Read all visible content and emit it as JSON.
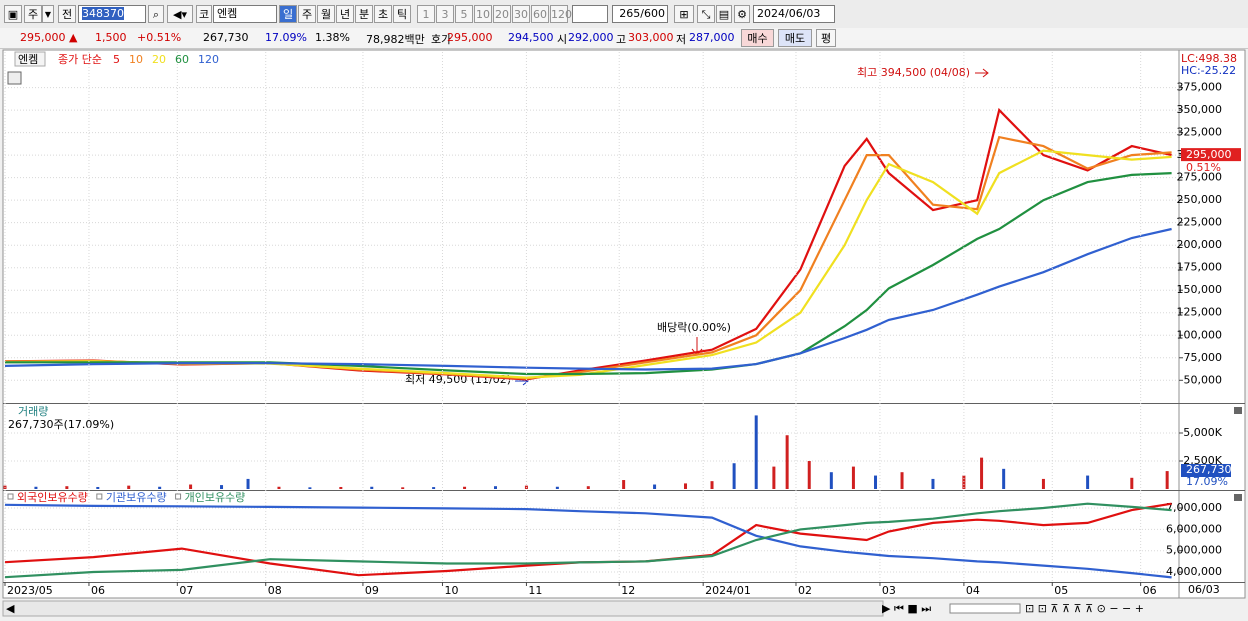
{
  "toolbar": {
    "market": "주",
    "prev": "전",
    "code": "348370",
    "exchange": "코",
    "name": "엔켐",
    "periods": [
      "일",
      "주",
      "월",
      "년",
      "분",
      "초",
      "틱"
    ],
    "intervals": [
      "1",
      "3",
      "5",
      "10",
      "20",
      "30",
      "60",
      "120"
    ],
    "count": "265/600",
    "date": "2024/06/03"
  },
  "quote": [
    {
      "text": "295,000 ▲",
      "color": "#d00000"
    },
    {
      "text": "1,500",
      "color": "#d00000"
    },
    {
      "text": "+0.51%",
      "color": "#d00000"
    },
    {
      "text": "267,730",
      "color": "#000000"
    },
    {
      "text": "17.09%",
      "color": "#0000c0"
    },
    {
      "text": "1.38%",
      "color": "#000000"
    },
    {
      "text": "78,982백만",
      "color": "#000000"
    },
    {
      "text": "호가",
      "color": "#000000"
    },
    {
      "text": "295,000",
      "color": "#d00000"
    },
    {
      "text": "294,500",
      "color": "#0000c0"
    },
    {
      "text": "시",
      "color": "#000000"
    },
    {
      "text": "292,000",
      "color": "#0000c0"
    },
    {
      "text": "고",
      "color": "#000000"
    },
    {
      "text": "303,000",
      "color": "#d00000"
    },
    {
      "text": "저",
      "color": "#000000"
    },
    {
      "text": "287,000",
      "color": "#0000c0"
    }
  ],
  "buttons": [
    "매수",
    "매도",
    "평"
  ],
  "chart_data": [
    {
      "type": "line",
      "title": "엔켐",
      "legend_title": "종가 단순",
      "x": [
        0,
        20,
        40,
        60,
        80,
        100,
        118,
        130,
        145,
        160,
        170,
        180,
        190,
        195,
        200,
        210,
        220,
        225,
        235,
        245,
        255,
        264
      ],
      "xlim": [
        0,
        265
      ],
      "ylim": [
        27000,
        414500
      ],
      "yticks": [
        {
          "value": 50000,
          "label": "50,000"
        },
        {
          "value": 75000,
          "label": "75,000"
        },
        {
          "value": 100000,
          "label": "100,000"
        },
        {
          "value": 125000,
          "label": "125,000"
        },
        {
          "value": 150000,
          "label": "150,000"
        },
        {
          "value": 175000,
          "label": "175,000"
        },
        {
          "value": 200000,
          "label": "200,000"
        },
        {
          "value": 225000,
          "label": "225,000"
        },
        {
          "value": 250000,
          "label": "250,000"
        },
        {
          "value": 275000,
          "label": "275,000"
        },
        {
          "value": 300000,
          "label": "300,000"
        },
        {
          "value": 325000,
          "label": "325,000"
        },
        {
          "value": 350000,
          "label": "350,000"
        },
        {
          "value": 375000,
          "label": "375,000"
        }
      ],
      "grid": true,
      "series": [
        {
          "name": "5",
          "color": "#e01010",
          "values": [
            71000,
            72000,
            67500,
            69000,
            61000,
            56500,
            51000,
            61000,
            72000,
            84000,
            107000,
            173000,
            288000,
            318000,
            280000,
            239000,
            250000,
            350000,
            300000,
            283000,
            310000,
            300000
          ]
        },
        {
          "name": "10",
          "color": "#f08020",
          "values": [
            71000,
            71500,
            68000,
            69000,
            62000,
            57000,
            52000,
            59000,
            70000,
            81000,
            100000,
            150000,
            250000,
            300000,
            300000,
            245000,
            240000,
            320000,
            310000,
            285000,
            300000,
            303000
          ]
        },
        {
          "name": "20",
          "color": "#f0e020",
          "values": [
            70000,
            71000,
            69000,
            68500,
            63000,
            58000,
            53000,
            56000,
            67000,
            78000,
            92000,
            125000,
            200000,
            250000,
            290000,
            270000,
            235000,
            280000,
            305000,
            300000,
            295000,
            298000
          ]
        },
        {
          "name": "60",
          "color": "#209040",
          "values": [
            70000,
            70000,
            70000,
            70000,
            66000,
            61000,
            57000,
            57000,
            58000,
            62000,
            68000,
            80000,
            110000,
            128000,
            152000,
            178000,
            207000,
            218000,
            250000,
            270000,
            278000,
            280000
          ]
        },
        {
          "name": "120",
          "color": "#3060d0",
          "values": [
            66000,
            68000,
            69000,
            69000,
            68000,
            66000,
            64000,
            63000,
            62000,
            63000,
            68000,
            80000,
            97000,
            106000,
            117000,
            128000,
            145000,
            154000,
            170000,
            190000,
            208000,
            218000
          ]
        }
      ],
      "annotations": [
        "최고 394,500 (04/08)",
        "배당락(0.00%)",
        "최저 49,500 (11/02)"
      ],
      "axis_info": [
        "LC:498.38",
        "HC:-25.22"
      ],
      "price_tag": "295,000",
      "change_tag": "0.51%"
    },
    {
      "type": "bar",
      "title": "거래량",
      "subtitle": "267,730주(17.09%)",
      "x": [
        0,
        7,
        14,
        21,
        28,
        35,
        42,
        49,
        55,
        62,
        69,
        76,
        83,
        90,
        97,
        104,
        111,
        118,
        125,
        132,
        140,
        147,
        154,
        160,
        165,
        170,
        174,
        177,
        182,
        187,
        192,
        197,
        203,
        210,
        217,
        221,
        226,
        235,
        245,
        255,
        263
      ],
      "values": [
        300,
        200,
        250,
        180,
        300,
        200,
        400,
        350,
        900,
        200,
        150,
        180,
        200,
        150,
        170,
        200,
        250,
        300,
        200,
        250,
        800,
        400,
        500,
        700,
        2300,
        6570,
        2000,
        4800,
        2500,
        1500,
        2000,
        1200,
        1500,
        900,
        1200,
        2800,
        1800,
        900,
        1200,
        1000,
        1600
      ],
      "colors": [
        "#d02020",
        "#2050c0",
        "#d02020",
        "#2050c0",
        "#d02020",
        "#2050c0",
        "#d02020",
        "#2050c0",
        "#2050c0",
        "#d02020",
        "#2050c0",
        "#d02020",
        "#2050c0",
        "#d02020",
        "#2050c0",
        "#d02020",
        "#2050c0",
        "#d02020",
        "#2050c0",
        "#d02020",
        "#d02020",
        "#2050c0",
        "#d02020",
        "#d02020",
        "#2050c0",
        "#2050c0",
        "#d02020",
        "#d02020",
        "#d02020",
        "#2050c0",
        "#d02020",
        "#2050c0",
        "#d02020",
        "#2050c0",
        "#d02020",
        "#d02020",
        "#2050c0",
        "#d02020",
        "#2050c0",
        "#d02020",
        "#d02020"
      ],
      "xlim": [
        0,
        265
      ],
      "ylim": [
        0,
        7500
      ],
      "yticks": [
        {
          "value": 2500,
          "label": "2,500K"
        },
        {
          "value": 5000,
          "label": "5,000K"
        }
      ],
      "grid": true,
      "value_tag": "267,730",
      "ratio_tag": "17.09%"
    },
    {
      "type": "line",
      "x": [
        0,
        20,
        40,
        60,
        80,
        100,
        118,
        130,
        145,
        160,
        170,
        180,
        190,
        195,
        200,
        210,
        220,
        225,
        235,
        245,
        255,
        264
      ],
      "xlim": [
        0,
        265
      ],
      "ylim": [
        3580000,
        7750000
      ],
      "yticks": [
        {
          "value": 4000000,
          "label": "4,000,000"
        },
        {
          "value": 5000000,
          "label": "5,000,000"
        },
        {
          "value": 6000000,
          "label": "6,000,000"
        },
        {
          "value": 7000000,
          "label": "7,000,000"
        }
      ],
      "xticks": [
        {
          "value": 0,
          "label": "2023/05"
        },
        {
          "value": 19,
          "label": "06"
        },
        {
          "value": 39,
          "label": "07"
        },
        {
          "value": 59,
          "label": "08"
        },
        {
          "value": 81,
          "label": "09"
        },
        {
          "value": 99,
          "label": "10"
        },
        {
          "value": 118,
          "label": "11"
        },
        {
          "value": 139,
          "label": "12"
        },
        {
          "value": 158,
          "label": "2024/01"
        },
        {
          "value": 179,
          "label": "02"
        },
        {
          "value": 198,
          "label": "03"
        },
        {
          "value": 217,
          "label": "04"
        },
        {
          "value": 237,
          "label": "05"
        },
        {
          "value": 257,
          "label": "06"
        }
      ],
      "x_end_label": "06/03",
      "grid": true,
      "series": [
        {
          "name": "외국인보유수량",
          "color": "#e01010",
          "values": [
            4460000,
            4700000,
            5100000,
            4400000,
            3850000,
            4050000,
            4300000,
            4450000,
            4500000,
            4800000,
            6200000,
            5800000,
            5600000,
            5500000,
            5900000,
            6300000,
            6450000,
            6400000,
            6200000,
            6300000,
            6900000,
            7200000
          ]
        },
        {
          "name": "기관보유수량",
          "color": "#3060d0",
          "values": [
            7150000,
            7100000,
            7080000,
            7050000,
            7020000,
            6980000,
            6950000,
            6850000,
            6750000,
            6550000,
            5700000,
            5200000,
            4950000,
            4850000,
            4750000,
            4650000,
            4500000,
            4450000,
            4300000,
            4150000,
            3950000,
            3750000
          ]
        },
        {
          "name": "개인보유수량",
          "color": "#309060",
          "values": [
            3760000,
            4000000,
            4100000,
            4600000,
            4500000,
            4400000,
            4400000,
            4450000,
            4500000,
            4750000,
            5500000,
            6000000,
            6200000,
            6300000,
            6350000,
            6500000,
            6750000,
            6850000,
            7000000,
            7200000,
            7050000,
            6900000
          ]
        }
      ]
    }
  ]
}
